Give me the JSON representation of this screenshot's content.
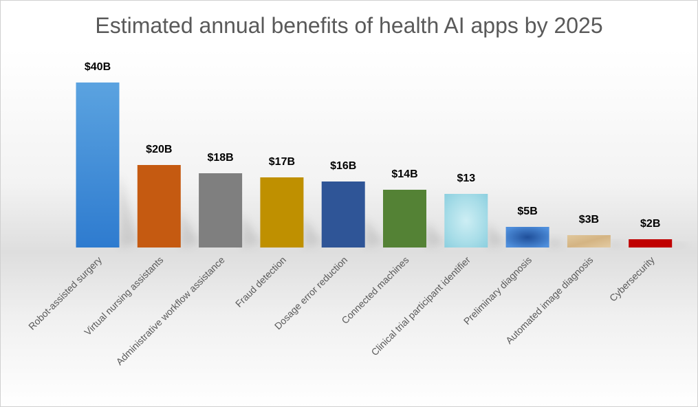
{
  "chart_data": {
    "type": "bar",
    "title": "Estimated annual benefits of health AI apps by 2025",
    "xlabel": "",
    "ylabel": "",
    "categories": [
      "Robot-assisted surgery",
      "Virtual nursing assistants",
      "Administrative workflow assistance",
      "Fraud detection",
      "Dosage error reduction",
      "Connected machines",
      "Clinical trial participant identifier",
      "Preliminary diagnosis",
      "Automated image diagnosis",
      "Cybersecurity"
    ],
    "values": [
      40,
      20,
      18,
      17,
      16,
      14,
      13,
      5,
      3,
      2
    ],
    "data_labels": [
      "$40B",
      "$20B",
      "$18B",
      "$17B",
      "$16B",
      "$14B",
      "$13",
      "$5B",
      "$3B",
      "$2B"
    ],
    "colors": [
      "#3a86d4",
      "#c55a11",
      "#7f7f7f",
      "#bf9000",
      "#2f5597",
      "#548235",
      "#a8dde8",
      "#3b79c8",
      "#d9bd8c",
      "#c00000"
    ],
    "ylim": [
      0,
      40
    ],
    "grid": false,
    "legend": "none"
  }
}
